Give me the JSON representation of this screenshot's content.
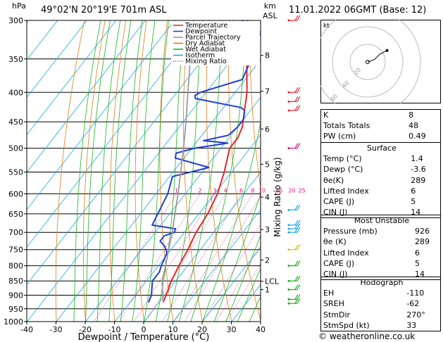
{
  "header": {
    "location": "49°02'N  20°19'E  701m  ASL",
    "datetime": "11.01.2022  06GMT  (Base: 12)",
    "pressure_unit": "hPa",
    "height_unit_1": "km",
    "height_unit_2": "ASL"
  },
  "axes": {
    "xlabel": "Dewpoint / Temperature (°C)",
    "right_label": "Mixing Ratio (g/kg)"
  },
  "legend": [
    "Temperature",
    "Dewpoint",
    "Parcel Trajectory",
    "Dry Adiabat",
    "Wet Adiabat",
    "Isotherm",
    "Mixing Ratio"
  ],
  "colors": {
    "temperature": "#e8262b",
    "dewpoint": "#1f3fd6",
    "parcel": "#9a9a9a",
    "dry_adiabat": "#e07b10",
    "wet_adiabat": "#19b319",
    "isotherm": "#19a9e0",
    "mixing_ratio": "#d4147e"
  },
  "chart_data": {
    "type": "line",
    "title": "",
    "xlabel": "Dewpoint / Temperature (°C)",
    "ylabel": "hPa",
    "xlim": [
      -40,
      40
    ],
    "ylim": [
      1000,
      300
    ],
    "pressure_ticks": [
      300,
      350,
      400,
      450,
      500,
      550,
      600,
      650,
      700,
      750,
      800,
      850,
      900,
      950,
      1000
    ],
    "temp_ticks": [
      -40,
      -30,
      -20,
      -10,
      0,
      10,
      20,
      30,
      40
    ],
    "km_ticks": [
      {
        "label": "8",
        "p": 345
      },
      {
        "label": "7",
        "p": 398
      },
      {
        "label": "6",
        "p": 463
      },
      {
        "label": "5",
        "p": 533
      },
      {
        "label": "4",
        "p": 608
      },
      {
        "label": "3",
        "p": 692
      },
      {
        "label": "2",
        "p": 782
      },
      {
        "label": "LCL",
        "p": 851
      },
      {
        "label": "1",
        "p": 880
      }
    ],
    "mixing_ratio_labels": [
      "1",
      "2",
      "3",
      "4",
      "6",
      "8",
      "10",
      "15",
      "20",
      "25"
    ],
    "mixing_ratio_values": [
      1,
      2,
      3,
      4,
      6,
      8,
      10,
      15,
      20,
      25
    ],
    "series": [
      {
        "name": "Temperature",
        "points": [
          [
            926,
            1.4
          ],
          [
            900,
            0.5
          ],
          [
            850,
            -1.5
          ],
          [
            800,
            -3.0
          ],
          [
            750,
            -4.2
          ],
          [
            700,
            -6.0
          ],
          [
            650,
            -7.0
          ],
          [
            600,
            -9.0
          ],
          [
            550,
            -12.5
          ],
          [
            500,
            -17.0
          ],
          [
            480,
            -17.0
          ],
          [
            460,
            -18.3
          ],
          [
            450,
            -19.5
          ],
          [
            400,
            -26.0
          ],
          [
            350,
            -35.0
          ],
          [
            310,
            -43.0
          ],
          [
            300,
            -45.0
          ]
        ]
      },
      {
        "name": "Dewpoint",
        "points": [
          [
            926,
            -3.6
          ],
          [
            900,
            -4.5
          ],
          [
            850,
            -8.0
          ],
          [
            820,
            -8.0
          ],
          [
            800,
            -9.0
          ],
          [
            760,
            -10.5
          ],
          [
            740,
            -13.0
          ],
          [
            725,
            -16.0
          ],
          [
            710,
            -16.0
          ],
          [
            700,
            -13.5
          ],
          [
            690,
            -14.0
          ],
          [
            680,
            -23.0
          ],
          [
            600,
            -26.0
          ],
          [
            560,
            -29.0
          ],
          [
            550,
            -24.0
          ],
          [
            540,
            -19.0
          ],
          [
            520,
            -33.0
          ],
          [
            510,
            -34.0
          ],
          [
            500,
            -29.0
          ],
          [
            490,
            -19.0
          ],
          [
            485,
            -28.0
          ],
          [
            475,
            -21.0
          ],
          [
            460,
            -20.0
          ],
          [
            445,
            -20.0
          ],
          [
            430,
            -22.0
          ],
          [
            425,
            -24.0
          ],
          [
            410,
            -42.0
          ],
          [
            405,
            -43.0
          ],
          [
            400,
            -42.0
          ],
          [
            380,
            -31.0
          ],
          [
            355,
            -33.0
          ],
          [
            345,
            -32.0
          ],
          [
            330,
            -37.0
          ],
          [
            315,
            -37.0
          ],
          [
            300,
            -47.0
          ]
        ]
      },
      {
        "name": "Parcel Trajectory",
        "points": [
          [
            926,
            1.4
          ],
          [
            851,
            -4.6
          ],
          [
            800,
            -7.5
          ],
          [
            750,
            -10.8
          ],
          [
            700,
            -14.2
          ],
          [
            650,
            -18.2
          ],
          [
            600,
            -22.5
          ],
          [
            550,
            -27.4
          ],
          [
            500,
            -32.8
          ],
          [
            450,
            -39.0
          ],
          [
            400,
            -46.2
          ],
          [
            350,
            -54.3
          ],
          [
            300,
            -63.5
          ]
        ]
      }
    ]
  },
  "hodograph": {
    "label": "kt",
    "ring_labels": [
      "20",
      "40",
      "60"
    ],
    "points": [
      [
        0,
        0
      ],
      [
        3,
        1
      ],
      [
        8,
        3
      ],
      [
        14,
        9
      ],
      [
        22,
        13
      ]
    ]
  },
  "indices": [
    {
      "label": "K",
      "value": "8"
    },
    {
      "label": "Totals Totals",
      "value": "48"
    },
    {
      "label": "PW (cm)",
      "value": "0.49"
    }
  ],
  "surface": {
    "title": "Surface",
    "rows": [
      {
        "label": "Temp (°C)",
        "value": "1.4"
      },
      {
        "label": "Dewp (°C)",
        "value": "-3.6"
      },
      {
        "label": "θe(K)",
        "value": "289"
      },
      {
        "label": "Lifted Index",
        "value": "6"
      },
      {
        "label": "CAPE (J)",
        "value": "5"
      },
      {
        "label": "CIN (J)",
        "value": "14"
      }
    ]
  },
  "most_unstable": {
    "title": "Most Unstable",
    "rows": [
      {
        "label": "Pressure (mb)",
        "value": "926"
      },
      {
        "label": "θe (K)",
        "value": "289"
      },
      {
        "label": "Lifted Index",
        "value": "6"
      },
      {
        "label": "CAPE (J)",
        "value": "5"
      },
      {
        "label": "CIN (J)",
        "value": "14"
      }
    ]
  },
  "hodograph_table": {
    "title": "Hodograph",
    "rows": [
      {
        "label": "EH",
        "value": "-110"
      },
      {
        "label": "SREH",
        "value": "-62"
      },
      {
        "label": "StmDir",
        "value": "270°"
      },
      {
        "label": "StmSpd (kt)",
        "value": "33"
      }
    ]
  },
  "wind_barbs": [
    {
      "p": 300,
      "color": "#e8262b"
    },
    {
      "p": 400,
      "color": "#e8262b"
    },
    {
      "p": 415,
      "color": "#e8262b"
    },
    {
      "p": 430,
      "color": "#e8262b"
    },
    {
      "p": 500,
      "color": "#d4147e"
    },
    {
      "p": 640,
      "color": "#19a9e0"
    },
    {
      "p": 680,
      "color": "#19a9e0"
    },
    {
      "p": 690,
      "color": "#19a9e0"
    },
    {
      "p": 700,
      "color": "#19a9e0"
    },
    {
      "p": 750,
      "color": "#c8c800"
    },
    {
      "p": 800,
      "color": "#19b319"
    },
    {
      "p": 850,
      "color": "#19b319"
    },
    {
      "p": 880,
      "color": "#19b319"
    },
    {
      "p": 915,
      "color": "#19b319"
    },
    {
      "p": 930,
      "color": "#19b319"
    }
  ],
  "credit": "© weatheronline.co.uk"
}
